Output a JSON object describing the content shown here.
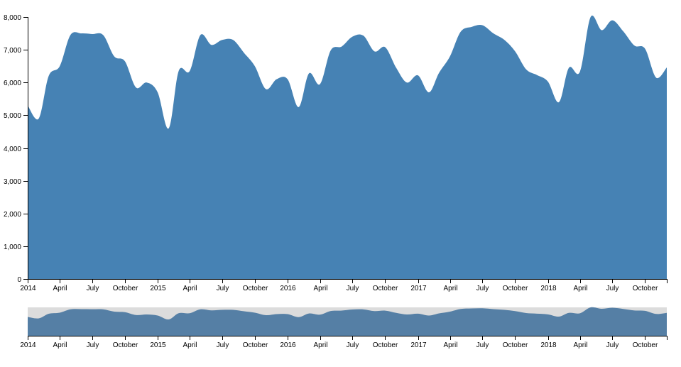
{
  "colors": {
    "area_main": "#4682b4",
    "area_context": "#557fa5",
    "brush": "#dcdcdc"
  },
  "chart_data": [
    {
      "type": "area",
      "role": "focus",
      "xlabel": "",
      "ylabel": "",
      "x": [
        "2014-01-01",
        "2014-02-01",
        "2014-03-01",
        "2014-04-01",
        "2014-05-01",
        "2014-06-01",
        "2014-07-01",
        "2014-08-01",
        "2014-09-01",
        "2014-10-01",
        "2014-11-01",
        "2014-12-01",
        "2015-01-01",
        "2015-02-01",
        "2015-03-01",
        "2015-04-01",
        "2015-05-01",
        "2015-06-01",
        "2015-07-01",
        "2015-08-01",
        "2015-09-01",
        "2015-10-01",
        "2015-11-01",
        "2015-12-01",
        "2016-01-01",
        "2016-02-01",
        "2016-03-01",
        "2016-04-01",
        "2016-05-01",
        "2016-06-01",
        "2016-07-01",
        "2016-08-01",
        "2016-09-01",
        "2016-10-01",
        "2016-11-01",
        "2016-12-01",
        "2017-01-01",
        "2017-02-01",
        "2017-03-01",
        "2017-04-01",
        "2017-05-01",
        "2017-06-01",
        "2017-07-01",
        "2017-08-01",
        "2017-09-01",
        "2017-10-01",
        "2017-11-01",
        "2017-12-01",
        "2018-01-01",
        "2018-02-01",
        "2018-03-01",
        "2018-04-01",
        "2018-05-01",
        "2018-06-01",
        "2018-07-01",
        "2018-08-01",
        "2018-09-01",
        "2018-10-01",
        "2018-11-01",
        "2018-12-01"
      ],
      "values": [
        5300,
        4900,
        6200,
        6500,
        7450,
        7500,
        7480,
        7450,
        6800,
        6650,
        5850,
        6000,
        5700,
        4600,
        6350,
        6350,
        7450,
        7150,
        7300,
        7300,
        6900,
        6500,
        5800,
        6100,
        6100,
        5250,
        6280,
        5950,
        6980,
        7100,
        7400,
        7430,
        6950,
        7080,
        6450,
        6000,
        6220,
        5700,
        6290,
        6800,
        7550,
        7700,
        7750,
        7500,
        7300,
        6950,
        6400,
        6230,
        6030,
        5400,
        6450,
        6330,
        8000,
        7600,
        7900,
        7560,
        7130,
        7030,
        6150,
        6460
      ],
      "ylim": [
        0,
        8000
      ],
      "yticks": [
        "0",
        "1,000",
        "2,000",
        "3,000",
        "4,000",
        "5,000",
        "6,000",
        "7,000",
        "8,000"
      ],
      "xticks": [
        "2014",
        "April",
        "July",
        "October",
        "2015",
        "April",
        "July",
        "October",
        "2016",
        "April",
        "July",
        "October",
        "2017",
        "April",
        "July",
        "October",
        "2018",
        "April",
        "July",
        "October"
      ],
      "grid": false
    },
    {
      "type": "area",
      "role": "context",
      "xticks": [
        "2014",
        "April",
        "July",
        "October",
        "2015",
        "April",
        "July",
        "October",
        "2016",
        "April",
        "July",
        "October",
        "2017",
        "April",
        "July",
        "October",
        "2018",
        "April",
        "July",
        "October"
      ],
      "brush": "full"
    }
  ]
}
